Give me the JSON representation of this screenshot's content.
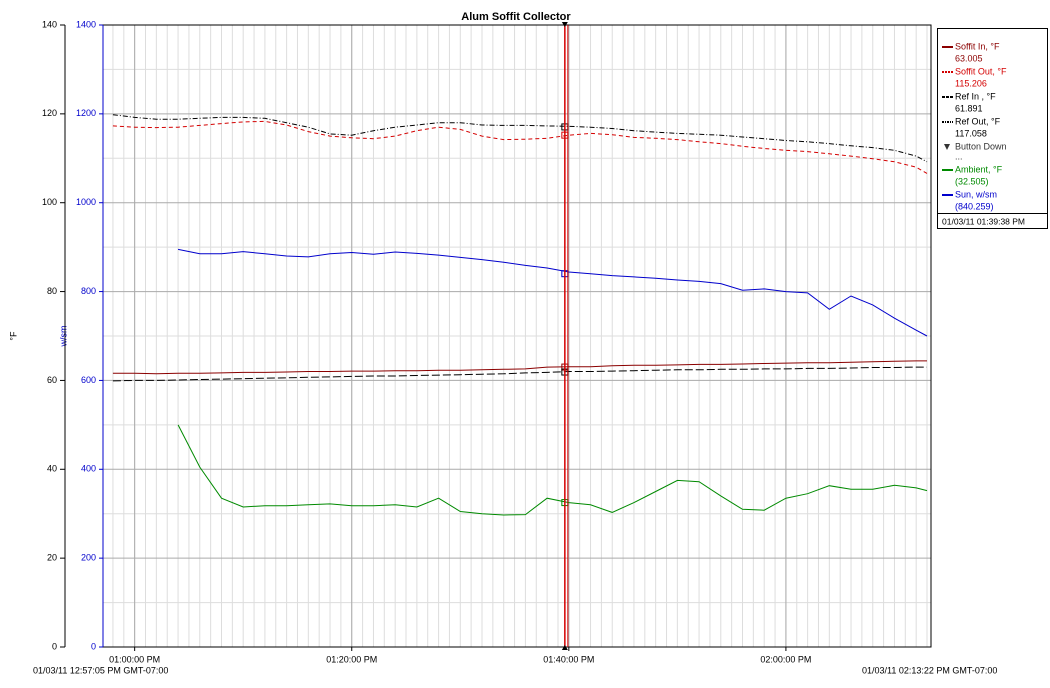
{
  "chart_data": {
    "type": "line",
    "title": "Alum Soffit Collector",
    "ylabel": "°F",
    "y2label": "w/sm",
    "xlim": [
      "01/03/11 12:57:05 PM GMT-07:00",
      "01/03/11 02:13:22 PM GMT-07:00"
    ],
    "xticks": [
      "01:00:00 PM",
      "01:20:00 PM",
      "01:40:00 PM",
      "02:00:00 PM"
    ],
    "ylim": [
      0,
      140
    ],
    "yticks": [
      0,
      20,
      40,
      60,
      80,
      100,
      120,
      140
    ],
    "y2lim": [
      0,
      1400
    ],
    "y2ticks": [
      0,
      200,
      400,
      600,
      800,
      1000,
      1200,
      1400
    ],
    "grid": true,
    "cursor": "01/03/11 01:39:38 PM",
    "event": {
      "name": "Button Down",
      "label": "..."
    },
    "x": [
      "12:58:00 PM",
      "01:00:00 PM",
      "01:02:00 PM",
      "01:04:00 PM",
      "01:06:00 PM",
      "01:08:00 PM",
      "01:10:00 PM",
      "01:12:00 PM",
      "01:14:00 PM",
      "01:16:00 PM",
      "01:18:00 PM",
      "01:20:00 PM",
      "01:22:00 PM",
      "01:24:00 PM",
      "01:26:00 PM",
      "01:28:00 PM",
      "01:30:00 PM",
      "01:32:00 PM",
      "01:34:00 PM",
      "01:36:00 PM",
      "01:38:00 PM",
      "01:40:00 PM",
      "01:42:00 PM",
      "01:44:00 PM",
      "01:46:00 PM",
      "01:48:00 PM",
      "01:50:00 PM",
      "01:52:00 PM",
      "01:54:00 PM",
      "01:56:00 PM",
      "01:58:00 PM",
      "02:00:00 PM",
      "02:02:00 PM",
      "02:04:00 PM",
      "02:06:00 PM",
      "02:08:00 PM",
      "02:10:00 PM",
      "02:12:00 PM",
      "02:13:00 PM"
    ],
    "series": [
      {
        "name": "Soffit In, °F",
        "color": "#8b0000",
        "dash": "none",
        "cursor_value": 63.005,
        "values": [
          61.6,
          61.6,
          61.5,
          61.6,
          61.6,
          61.7,
          61.8,
          61.8,
          61.9,
          62,
          62,
          62.1,
          62.1,
          62.2,
          62.2,
          62.3,
          62.3,
          62.4,
          62.5,
          62.6,
          63,
          63.1,
          63.1,
          63.3,
          63.4,
          63.4,
          63.5,
          63.6,
          63.6,
          63.7,
          63.8,
          63.9,
          64,
          64,
          64.1,
          64.2,
          64.3,
          64.4,
          64.4
        ]
      },
      {
        "name": "Soffit Out, °F",
        "color": "#d40000",
        "dash": "4,3",
        "cursor_value": 115.206,
        "values": [
          117.3,
          117,
          116.9,
          117,
          117.4,
          117.8,
          118.2,
          118.3,
          117.5,
          116,
          115,
          114.6,
          114.4,
          115,
          116.2,
          117,
          116.5,
          115,
          114.2,
          114.3,
          114.5,
          115.2,
          115.6,
          115.3,
          114.7,
          114.5,
          114.2,
          113.7,
          113.3,
          112.7,
          112.2,
          111.8,
          111.5,
          111,
          110.5,
          109.9,
          109.2,
          108,
          106.6
        ]
      },
      {
        "name": "Ref In , °F",
        "color": "#000000",
        "dash": "8,3",
        "cursor_value": 61.891,
        "values": [
          59.9,
          60,
          60,
          60.1,
          60.2,
          60.3,
          60.4,
          60.5,
          60.6,
          60.7,
          60.8,
          60.9,
          61,
          61,
          61.1,
          61.2,
          61.3,
          61.4,
          61.5,
          61.7,
          61.8,
          62,
          62,
          62.1,
          62.2,
          62.3,
          62.4,
          62.4,
          62.5,
          62.5,
          62.6,
          62.6,
          62.7,
          62.7,
          62.8,
          62.9,
          62.9,
          63,
          63
        ]
      },
      {
        "name": "Ref Out, °F",
        "color": "#000000",
        "dash": "5,2,1,2",
        "cursor_value": 117.058,
        "values": [
          119.8,
          119.2,
          118.8,
          118.8,
          119,
          119.2,
          119.2,
          119,
          118,
          117,
          115.5,
          115.2,
          116.2,
          117,
          117.5,
          118,
          118,
          117.5,
          117.4,
          117.4,
          117.3,
          117.2,
          117,
          116.7,
          116.2,
          115.9,
          115.6,
          115.4,
          115.2,
          114.8,
          114.4,
          114,
          113.7,
          113.3,
          112.8,
          112.4,
          111.8,
          110.5,
          109.2
        ]
      },
      {
        "name": "Ambient, °F",
        "color": "#008a00",
        "dash": "none",
        "cursor_value": 32.505,
        "cursor_value_label": "(32.505)",
        "values": [
          null,
          null,
          null,
          50,
          40.5,
          33.5,
          31.5,
          31.8,
          31.8,
          32,
          32.2,
          31.8,
          31.8,
          32,
          31.5,
          33.5,
          30.5,
          30,
          29.7,
          29.8,
          33.5,
          32.5,
          32,
          30.3,
          32.5,
          35,
          37.5,
          37.2,
          34,
          31,
          30.8,
          33.5,
          34.5,
          36.3,
          35.5,
          35.5,
          36.4,
          35.8,
          35.2
        ]
      },
      {
        "name": "Sun, w/sm",
        "color": "#0000cc",
        "dash": "none",
        "axis": "y2",
        "cursor_value": 840.259,
        "cursor_value_label": "(840.259)",
        "values": [
          null,
          null,
          null,
          895,
          885,
          885,
          890,
          885,
          880,
          878,
          885,
          888,
          884,
          889,
          886,
          882,
          877,
          872,
          866,
          859,
          853,
          844,
          840,
          836,
          833,
          830,
          826,
          823,
          818,
          803,
          806,
          800,
          797,
          760,
          790,
          770,
          740,
          713,
          700
        ]
      }
    ]
  }
}
